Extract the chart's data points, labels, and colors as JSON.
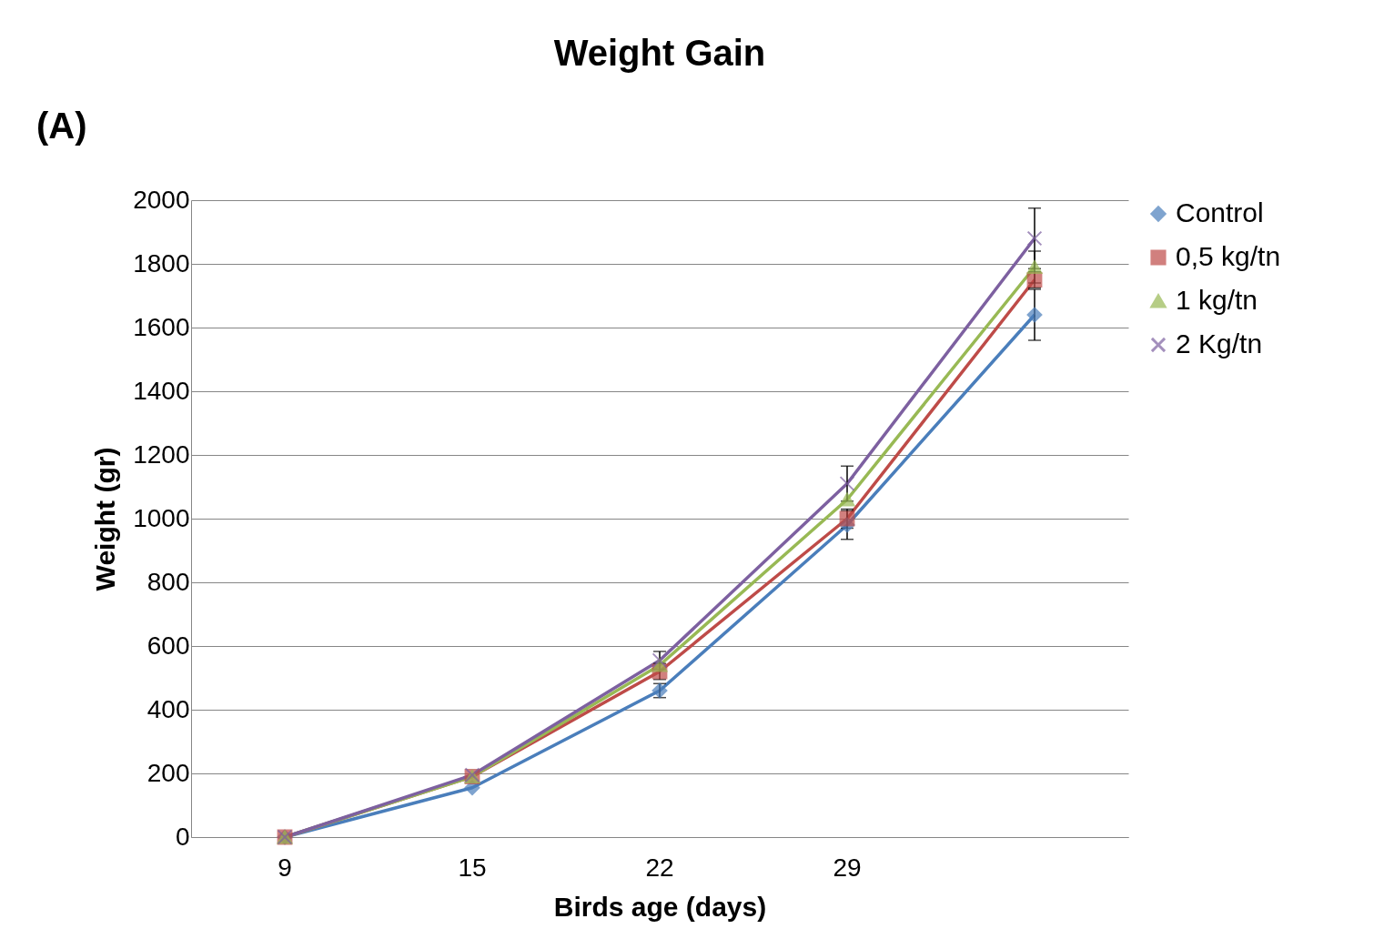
{
  "chart_data": {
    "type": "line",
    "title": "Weight Gain",
    "xlabel": "Birds age (days)",
    "ylabel": "Weight (gr)",
    "annotations": [
      "(A)"
    ],
    "categories": [
      "9",
      "15",
      "22",
      "29",
      null
    ],
    "series": [
      {
        "name": "Control",
        "color": "#4a7ebb",
        "marker": "diamond",
        "values": [
          0,
          155,
          460,
          980,
          1640
        ],
        "errors": [
          null,
          null,
          22,
          45,
          80
        ]
      },
      {
        "name": "0,5 kg/tn",
        "color": "#be4b48",
        "marker": "square",
        "values": [
          0,
          190,
          520,
          1000,
          1750
        ],
        "errors": [
          null,
          null,
          25,
          30,
          25
        ]
      },
      {
        "name": "1 kg/tn",
        "color": "#98b954",
        "marker": "triangle",
        "values": [
          0,
          190,
          540,
          1060,
          1790
        ],
        "errors": [
          null,
          null,
          null,
          null,
          50
        ]
      },
      {
        "name": "2 Kg/tn",
        "color": "#7d60a0",
        "marker": "cross",
        "values": [
          0,
          195,
          555,
          1110,
          1880
        ],
        "errors": [
          null,
          null,
          28,
          55,
          95
        ]
      }
    ],
    "ylim": [
      0,
      2000
    ],
    "yticks": [
      0,
      200,
      400,
      600,
      800,
      1000,
      1200,
      1400,
      1600,
      1800,
      2000
    ],
    "grid": "y",
    "legend": "right",
    "line_style": "solid"
  }
}
